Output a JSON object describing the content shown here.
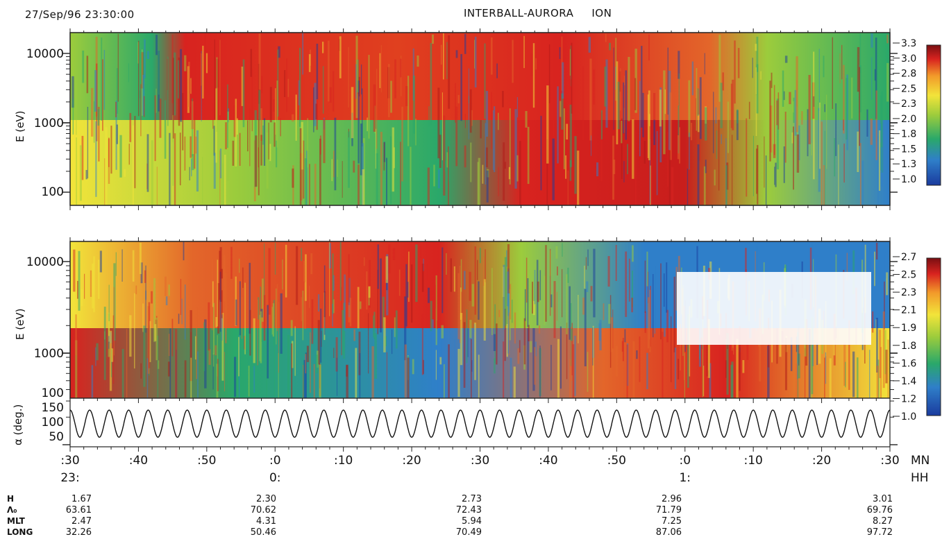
{
  "header": {
    "date": "27/Sep/96 23:30:00",
    "title": "INTERBALL-AURORA",
    "instrument": "ION"
  },
  "chart_data": [
    {
      "type": "heatmap",
      "name": "upper spectrogram",
      "ylabel": "E (eV)",
      "yscale": "log",
      "yticks": [
        "10000",
        "1000",
        "100"
      ],
      "colorbar_ticks": [
        "3.3",
        "3.0",
        "2.8",
        "2.5",
        "2.3",
        "2.0",
        "1.8",
        "1.5",
        "1.3",
        "1.0"
      ],
      "colorbar_range": [
        1.0,
        3.3
      ]
    },
    {
      "type": "heatmap",
      "name": "lower spectrogram",
      "ylabel": "E (eV)",
      "yscale": "log",
      "yticks": [
        "10000",
        "1000",
        "100"
      ],
      "colorbar_ticks": [
        "2.7",
        "2.5",
        "2.3",
        "2.1",
        "1.9",
        "1.8",
        "1.6",
        "1.4",
        "1.2",
        "1.0"
      ],
      "colorbar_range": [
        1.0,
        2.7
      ]
    },
    {
      "type": "line",
      "name": "pitch angle",
      "ylabel": "α (deg.)",
      "yticks": [
        "150",
        "100",
        "50"
      ],
      "ylim": [
        30,
        170
      ],
      "oscillation": {
        "cycles": 42,
        "min": 55,
        "max": 138
      }
    }
  ],
  "time_axis": {
    "minute_labels": [
      ":30",
      ":40",
      ":50",
      ":0",
      ":10",
      ":20",
      ":30",
      ":40",
      ":50",
      ":0",
      ":10",
      ":20",
      ":30"
    ],
    "hour_labels": [
      {
        "index": 0,
        "text": "23:"
      },
      {
        "index": 3,
        "text": "0:"
      },
      {
        "index": 9,
        "text": "1:"
      }
    ],
    "mn_label": "MN",
    "hh_label": "HH"
  },
  "ephemeris": {
    "rows": [
      {
        "name": "H",
        "values": [
          "1.67",
          "2.30",
          "2.73",
          "2.96",
          "3.01"
        ]
      },
      {
        "name": "Λ₀",
        "values": [
          "63.61",
          "70.62",
          "72.43",
          "71.79",
          "69.76"
        ]
      },
      {
        "name": "MLT",
        "values": [
          "2.47",
          "4.31",
          "5.94",
          "7.25",
          "8.27"
        ]
      },
      {
        "name": "LONG",
        "values": [
          "32.26",
          "50.46",
          "70.49",
          "87.06",
          "97.72"
        ]
      }
    ]
  }
}
